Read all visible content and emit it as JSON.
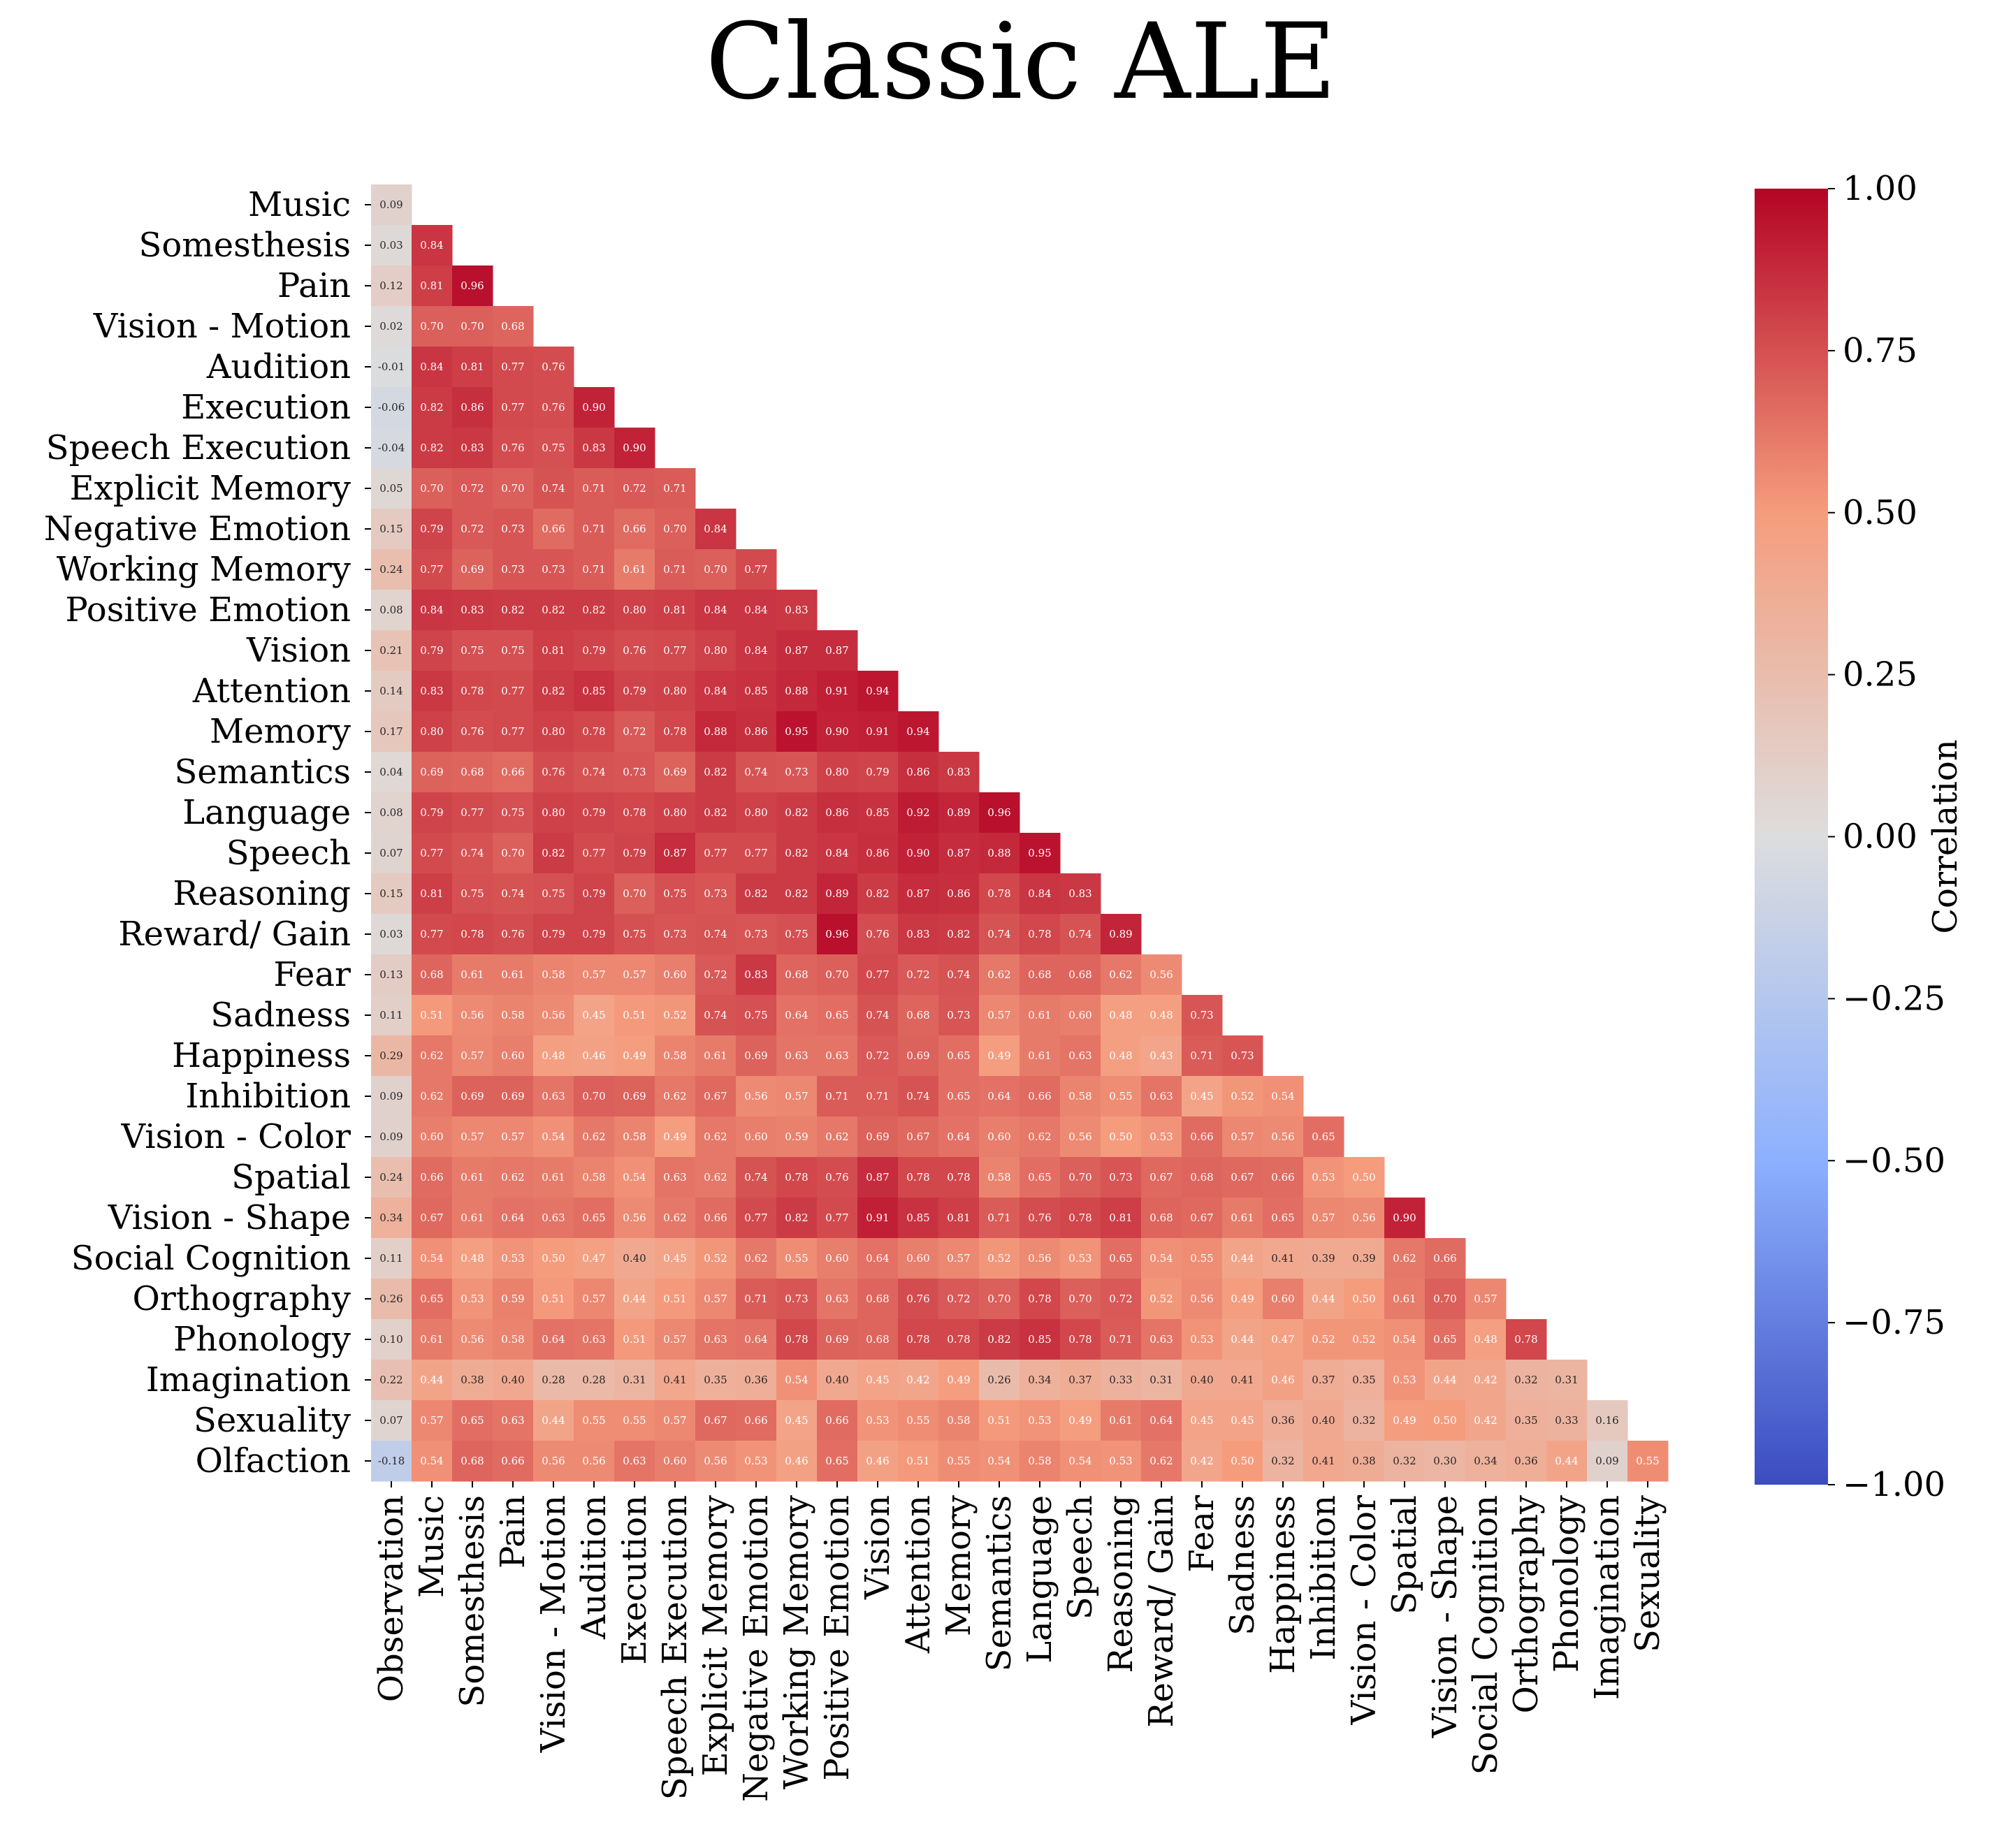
{
  "chart_data": {
    "type": "heatmap",
    "title": "Classic ALE",
    "row_labels": [
      "Music",
      "Somesthesis",
      "Pain",
      "Vision - Motion",
      "Audition",
      "Execution",
      "Speech Execution",
      "Explicit Memory",
      "Negative Emotion",
      "Working Memory",
      "Positive Emotion",
      "Vision",
      "Attention",
      "Memory",
      "Semantics",
      "Language",
      "Speech",
      "Reasoning",
      "Reward/ Gain",
      "Fear",
      "Sadness",
      "Happiness",
      "Inhibition",
      "Vision - Color",
      "Spatial",
      "Vision - Shape",
      "Social Cognition",
      "Orthography",
      "Phonology",
      "Imagination",
      "Sexuality",
      "Olfaction"
    ],
    "col_labels": [
      "Observation",
      "Music",
      "Somesthesis",
      "Pain",
      "Vision - Motion",
      "Audition",
      "Execution",
      "Speech Execution",
      "Explicit Memory",
      "Negative Emotion",
      "Working Memory",
      "Positive Emotion",
      "Vision",
      "Attention",
      "Memory",
      "Semantics",
      "Language",
      "Speech",
      "Reasoning",
      "Reward/ Gain",
      "Fear",
      "Sadness",
      "Happiness",
      "Inhibition",
      "Vision - Color",
      "Spatial",
      "Vision - Shape",
      "Social Cognition",
      "Orthography",
      "Phonology",
      "Imagination",
      "Sexuality"
    ],
    "values": [
      [
        0.09
      ],
      [
        0.03,
        0.84
      ],
      [
        0.12,
        0.81,
        0.96
      ],
      [
        0.02,
        0.7,
        0.7,
        0.68
      ],
      [
        -0.01,
        0.84,
        0.81,
        0.77,
        0.76
      ],
      [
        -0.06,
        0.82,
        0.86,
        0.77,
        0.76,
        0.9
      ],
      [
        -0.04,
        0.82,
        0.83,
        0.76,
        0.75,
        0.83,
        0.9
      ],
      [
        0.05,
        0.7,
        0.72,
        0.7,
        0.74,
        0.71,
        0.72,
        0.71
      ],
      [
        0.15,
        0.79,
        0.72,
        0.73,
        0.66,
        0.71,
        0.66,
        0.7,
        0.84
      ],
      [
        0.24,
        0.77,
        0.69,
        0.73,
        0.73,
        0.71,
        0.61,
        0.71,
        0.7,
        0.77
      ],
      [
        0.08,
        0.84,
        0.83,
        0.82,
        0.82,
        0.82,
        0.8,
        0.81,
        0.84,
        0.84,
        0.83
      ],
      [
        0.21,
        0.79,
        0.75,
        0.75,
        0.81,
        0.79,
        0.76,
        0.77,
        0.8,
        0.84,
        0.87,
        0.87
      ],
      [
        0.14,
        0.83,
        0.78,
        0.77,
        0.82,
        0.85,
        0.79,
        0.8,
        0.84,
        0.85,
        0.88,
        0.91,
        0.94
      ],
      [
        0.17,
        0.8,
        0.76,
        0.77,
        0.8,
        0.78,
        0.72,
        0.78,
        0.88,
        0.86,
        0.95,
        0.9,
        0.91,
        0.94
      ],
      [
        0.04,
        0.69,
        0.68,
        0.66,
        0.76,
        0.74,
        0.73,
        0.69,
        0.82,
        0.74,
        0.73,
        0.8,
        0.79,
        0.86,
        0.83
      ],
      [
        0.08,
        0.79,
        0.77,
        0.75,
        0.8,
        0.79,
        0.78,
        0.8,
        0.82,
        0.8,
        0.82,
        0.86,
        0.85,
        0.92,
        0.89,
        0.96
      ],
      [
        0.07,
        0.77,
        0.74,
        0.7,
        0.82,
        0.77,
        0.79,
        0.87,
        0.77,
        0.77,
        0.82,
        0.84,
        0.86,
        0.9,
        0.87,
        0.88,
        0.95
      ],
      [
        0.15,
        0.81,
        0.75,
        0.74,
        0.75,
        0.79,
        0.7,
        0.75,
        0.73,
        0.82,
        0.82,
        0.89,
        0.82,
        0.87,
        0.86,
        0.78,
        0.84,
        0.83
      ],
      [
        0.03,
        0.77,
        0.78,
        0.76,
        0.79,
        0.79,
        0.75,
        0.73,
        0.74,
        0.73,
        0.75,
        0.96,
        0.76,
        0.83,
        0.82,
        0.74,
        0.78,
        0.74,
        0.89
      ],
      [
        0.13,
        0.68,
        0.61,
        0.61,
        0.58,
        0.57,
        0.57,
        0.6,
        0.72,
        0.83,
        0.68,
        0.7,
        0.77,
        0.72,
        0.74,
        0.62,
        0.68,
        0.68,
        0.62,
        0.56
      ],
      [
        0.11,
        0.51,
        0.56,
        0.58,
        0.56,
        0.45,
        0.51,
        0.52,
        0.74,
        0.75,
        0.64,
        0.65,
        0.74,
        0.68,
        0.73,
        0.57,
        0.61,
        0.6,
        0.48,
        0.48,
        0.73
      ],
      [
        0.29,
        0.62,
        0.57,
        0.6,
        0.48,
        0.46,
        0.49,
        0.58,
        0.61,
        0.69,
        0.63,
        0.63,
        0.72,
        0.69,
        0.65,
        0.49,
        0.61,
        0.63,
        0.48,
        0.43,
        0.71,
        0.73
      ],
      [
        0.09,
        0.62,
        0.69,
        0.69,
        0.63,
        0.7,
        0.69,
        0.62,
        0.67,
        0.56,
        0.57,
        0.71,
        0.71,
        0.74,
        0.65,
        0.64,
        0.66,
        0.58,
        0.55,
        0.63,
        0.45,
        0.52,
        0.54
      ],
      [
        0.09,
        0.6,
        0.57,
        0.57,
        0.54,
        0.62,
        0.58,
        0.49,
        0.62,
        0.6,
        0.59,
        0.62,
        0.69,
        0.67,
        0.64,
        0.6,
        0.62,
        0.56,
        0.5,
        0.53,
        0.66,
        0.57,
        0.56,
        0.65
      ],
      [
        0.24,
        0.66,
        0.61,
        0.62,
        0.61,
        0.58,
        0.54,
        0.63,
        0.62,
        0.74,
        0.78,
        0.76,
        0.87,
        0.78,
        0.78,
        0.58,
        0.65,
        0.7,
        0.73,
        0.67,
        0.68,
        0.67,
        0.66,
        0.53,
        0.5
      ],
      [
        0.34,
        0.67,
        0.61,
        0.64,
        0.63,
        0.65,
        0.56,
        0.62,
        0.66,
        0.77,
        0.82,
        0.77,
        0.91,
        0.85,
        0.81,
        0.71,
        0.76,
        0.78,
        0.81,
        0.68,
        0.67,
        0.61,
        0.65,
        0.57,
        0.56,
        0.9
      ],
      [
        0.11,
        0.54,
        0.48,
        0.53,
        0.5,
        0.47,
        0.4,
        0.45,
        0.52,
        0.62,
        0.55,
        0.6,
        0.64,
        0.6,
        0.57,
        0.52,
        0.56,
        0.53,
        0.65,
        0.54,
        0.55,
        0.44,
        0.41,
        0.39,
        0.39,
        0.62,
        0.66
      ],
      [
        0.26,
        0.65,
        0.53,
        0.59,
        0.51,
        0.57,
        0.44,
        0.51,
        0.57,
        0.71,
        0.73,
        0.63,
        0.68,
        0.76,
        0.72,
        0.7,
        0.78,
        0.7,
        0.72,
        0.52,
        0.56,
        0.49,
        0.6,
        0.44,
        0.5,
        0.61,
        0.7,
        0.57
      ],
      [
        0.1,
        0.61,
        0.56,
        0.58,
        0.64,
        0.63,
        0.51,
        0.57,
        0.63,
        0.64,
        0.78,
        0.69,
        0.68,
        0.78,
        0.78,
        0.82,
        0.85,
        0.78,
        0.71,
        0.63,
        0.53,
        0.44,
        0.47,
        0.52,
        0.52,
        0.54,
        0.65,
        0.48,
        0.78
      ],
      [
        0.22,
        0.44,
        0.38,
        0.4,
        0.28,
        0.28,
        0.31,
        0.41,
        0.35,
        0.36,
        0.54,
        0.4,
        0.45,
        0.42,
        0.49,
        0.26,
        0.34,
        0.37,
        0.33,
        0.31,
        0.4,
        0.41,
        0.46,
        0.37,
        0.35,
        0.53,
        0.44,
        0.42,
        0.32,
        0.31
      ],
      [
        0.07,
        0.57,
        0.65,
        0.63,
        0.44,
        0.55,
        0.55,
        0.57,
        0.67,
        0.66,
        0.45,
        0.66,
        0.53,
        0.55,
        0.58,
        0.51,
        0.53,
        0.49,
        0.61,
        0.64,
        0.45,
        0.45,
        0.36,
        0.4,
        0.32,
        0.49,
        0.5,
        0.42,
        0.35,
        0.33,
        0.16
      ],
      [
        -0.18,
        0.54,
        0.68,
        0.66,
        0.56,
        0.56,
        0.63,
        0.6,
        0.56,
        0.53,
        0.46,
        0.65,
        0.46,
        0.51,
        0.55,
        0.54,
        0.58,
        0.54,
        0.53,
        0.62,
        0.42,
        0.5,
        0.32,
        0.41,
        0.38,
        0.32,
        0.3,
        0.34,
        0.36,
        0.44,
        0.09,
        0.55
      ]
    ],
    "value_range": [
      -1.0,
      1.0
    ],
    "colormap": "coolwarm",
    "colorbar": {
      "label": "Correlation",
      "ticks": [
        1.0,
        0.75,
        0.5,
        0.25,
        0.0,
        -0.25,
        -0.5,
        -0.75,
        -1.0
      ],
      "tick_labels": [
        "1.00",
        "0.75",
        "0.50",
        "0.25",
        "0.00",
        "−0.25",
        "−0.50",
        "−0.75",
        "−1.00"
      ],
      "placement": "right"
    },
    "annotation_format": "2 decimals",
    "mask": "upper triangle",
    "legend": "none",
    "grid": false
  }
}
